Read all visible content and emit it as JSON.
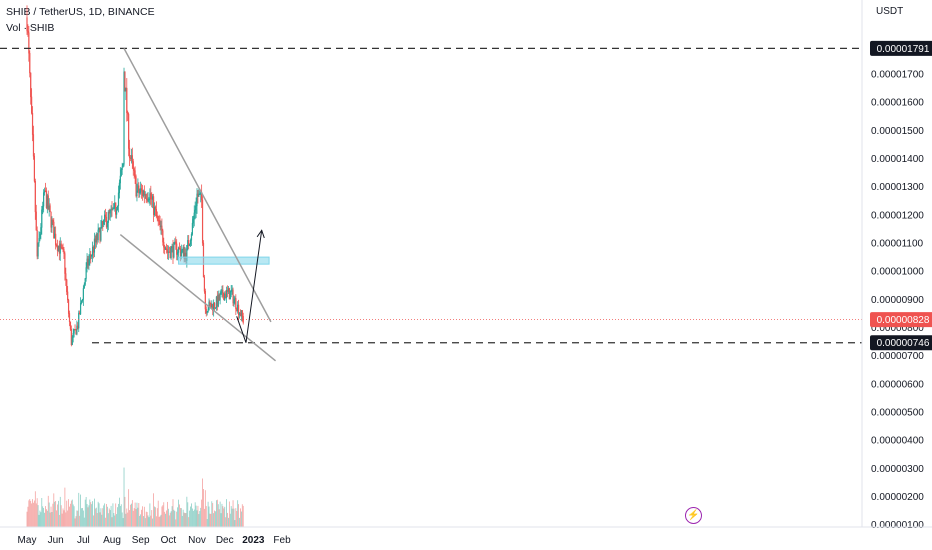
{
  "header": {
    "title": "SHIB / TetherUS, 1D, BINANCE",
    "volume_label": "Vol · SHIB",
    "currency": "USDT"
  },
  "colors": {
    "up": "#26a69a",
    "down": "#ef5350",
    "up_vol": "#8ccfc6",
    "down_vol": "#f4a3a1",
    "trendline": "#9e9e9e",
    "zone": "#7fd6ea",
    "price_tag": "#ef5350",
    "level_tag": "#131722"
  },
  "chart_data": {
    "type": "candlestick",
    "symbol": "SHIB / TetherUS",
    "interval": "1D",
    "exchange": "BINANCE",
    "y_ticks": [
      "0.00001700",
      "0.00001600",
      "0.00001500",
      "0.00001400",
      "0.00001300",
      "0.00001200",
      "0.00001100",
      "0.00001000",
      "0.00000900",
      "0.00000800",
      "0.00000700",
      "0.00000600",
      "0.00000500",
      "0.00000400",
      "0.00000300",
      "0.00000200",
      "0.00000100"
    ],
    "x_ticks": [
      "May",
      "Jun",
      "Jul",
      "Aug",
      "Sep",
      "Oct",
      "Nov",
      "Dec",
      "2023",
      "Feb"
    ],
    "last_price": "0.00000828",
    "level_high": "0.00001791",
    "level_low": "0.00000746",
    "upper_trendline": {
      "from": [
        "2022-08-14",
        1.791e-05
      ],
      "to": [
        "2023-01-20",
        8.2e-06
      ]
    },
    "lower_trendline": {
      "from": [
        "2022-08-10",
        1.13e-05
      ],
      "to": [
        "2023-01-25",
        6.82e-06
      ]
    },
    "resistance_zone": {
      "from": "2022-10-12",
      "to": "2023-01-18",
      "low": 1.025e-05,
      "high": 1.05e-05
    },
    "projection_path": [
      [
        "2022-12-14",
        8.4e-06
      ],
      [
        "2022-12-24",
        7.46e-06
      ],
      [
        "2023-01-10",
        1.145e-05
      ]
    ],
    "price_key_points": [
      [
        "2022-05-01",
        1.9e-05
      ],
      [
        "2022-05-08",
        1.38e-05
      ],
      [
        "2022-05-12",
        1.05e-05
      ],
      [
        "2022-05-20",
        1.28e-05
      ],
      [
        "2022-06-01",
        1.11e-05
      ],
      [
        "2022-06-10",
        1.05e-05
      ],
      [
        "2022-06-13",
        9.2e-06
      ],
      [
        "2022-06-18",
        7.5e-06
      ],
      [
        "2022-06-25",
        8.1e-06
      ],
      [
        "2022-07-05",
        1.02e-05
      ],
      [
        "2022-07-15",
        1.11e-05
      ],
      [
        "2022-07-25",
        1.18e-05
      ],
      [
        "2022-08-05",
        1.22e-05
      ],
      [
        "2022-08-13",
        1.38e-05
      ],
      [
        "2022-08-14",
        1.72e-05
      ],
      [
        "2022-08-20",
        1.42e-05
      ],
      [
        "2022-08-28",
        1.28e-05
      ],
      [
        "2022-09-10",
        1.28e-05
      ],
      [
        "2022-09-20",
        1.17e-05
      ],
      [
        "2022-09-30",
        1.07e-05
      ],
      [
        "2022-10-10",
        1.08e-05
      ],
      [
        "2022-10-20",
        1.06e-05
      ],
      [
        "2022-10-27",
        1.16e-05
      ],
      [
        "2022-11-01",
        1.27e-05
      ],
      [
        "2022-11-06",
        1.25e-05
      ],
      [
        "2022-11-08",
        1e-05
      ],
      [
        "2022-11-10",
        8.7e-06
      ],
      [
        "2022-11-20",
        8.8e-06
      ],
      [
        "2022-11-30",
        9.2e-06
      ],
      [
        "2022-12-08",
        9.2e-06
      ],
      [
        "2022-12-14",
        8.8e-06
      ],
      [
        "2022-12-21",
        8.28e-06
      ]
    ]
  }
}
